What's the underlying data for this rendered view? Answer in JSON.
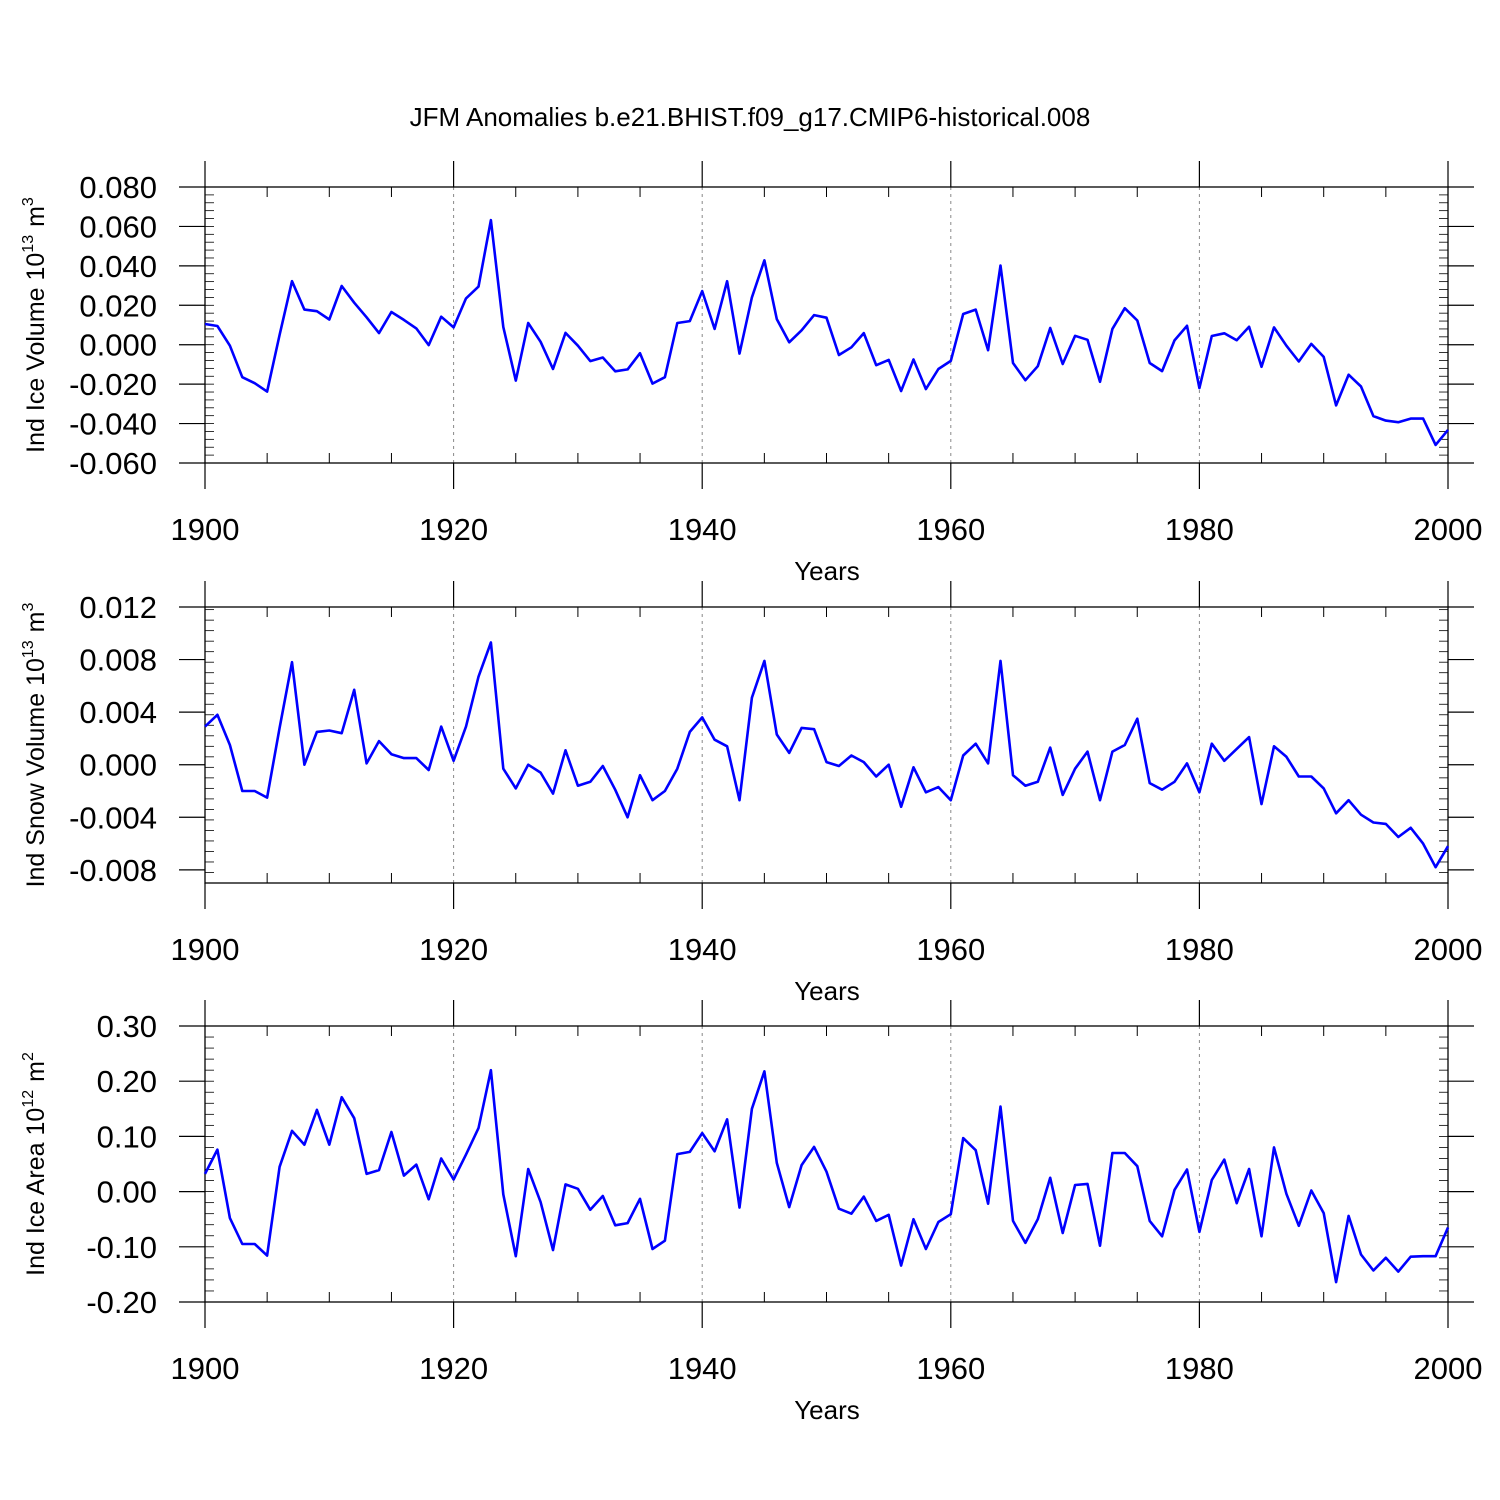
{
  "figure": {
    "title": "JFM Anomalies b.e21.BHIST.f09_g17.CMIP6-historical.008",
    "line_color": "#0000ff",
    "grid_color": "#888888",
    "axis_color": "#000000"
  },
  "chart_data": [
    {
      "type": "line",
      "name": "ice-volume",
      "ylabel": "Ind Ice Volume 10",
      "ylabel_exponent": "13",
      "ylabel_unit": "m",
      "ylabel_unit_exponent": "3",
      "xlabel": "Years",
      "xlim": [
        1900,
        2000
      ],
      "ylim": [
        -0.06,
        0.08
      ],
      "yticks": [
        -0.06,
        -0.04,
        -0.02,
        0.0,
        0.02,
        0.04,
        0.06,
        0.08
      ],
      "ytick_labels": [
        "-0.060",
        "-0.040",
        "-0.020",
        "0.000",
        "0.020",
        "0.040",
        "0.060",
        "0.080"
      ],
      "xticks": [
        1900,
        1920,
        1940,
        1960,
        1980,
        2000
      ],
      "xtick_labels": [
        "1900",
        "1920",
        "1940",
        "1960",
        "1980",
        "2000"
      ],
      "x_start": 1900,
      "values": [
        0.0105,
        0.0095,
        -0.0005,
        -0.0165,
        -0.0195,
        -0.0238,
        0.005,
        0.0322,
        0.0178,
        0.017,
        0.0128,
        0.0298,
        0.0213,
        0.0139,
        0.0059,
        0.0166,
        0.0126,
        0.0083,
        -0.0002,
        0.0142,
        0.0088,
        0.0235,
        0.0295,
        0.0632,
        0.009,
        -0.0182,
        0.011,
        0.0015,
        -0.0123,
        0.006,
        -0.0005,
        -0.0083,
        -0.0065,
        -0.0135,
        -0.0125,
        -0.0043,
        -0.0197,
        -0.0165,
        0.011,
        0.012,
        0.0272,
        0.008,
        0.0322,
        -0.0045,
        0.024,
        0.0428,
        0.013,
        0.0012,
        0.0073,
        0.015,
        0.0137,
        -0.0052,
        -0.0013,
        0.0059,
        -0.0104,
        -0.0077,
        -0.0235,
        -0.0075,
        -0.0225,
        -0.0123,
        -0.0082,
        0.0156,
        0.0178,
        -0.0028,
        0.0402,
        -0.0093,
        -0.018,
        -0.0109,
        0.0085,
        -0.0098,
        0.0045,
        0.0025,
        -0.0188,
        0.008,
        0.0185,
        0.0123,
        -0.0093,
        -0.0134,
        0.0022,
        0.0096,
        -0.022,
        0.0044,
        0.0058,
        0.0023,
        0.0091,
        -0.0112,
        0.0088,
        -0.0005,
        -0.0085,
        0.0004,
        -0.0062,
        -0.0308,
        -0.0152,
        -0.0212,
        -0.0362,
        -0.0385,
        -0.0393,
        -0.0375,
        -0.0375,
        -0.0508,
        -0.0432
      ]
    },
    {
      "type": "line",
      "name": "snow-volume",
      "ylabel": "Ind Snow Volume 10",
      "ylabel_exponent": "13",
      "ylabel_unit": "m",
      "ylabel_unit_exponent": "3",
      "xlabel": "Years",
      "xlim": [
        1900,
        2000
      ],
      "ylim": [
        -0.009,
        0.012
      ],
      "yticks": [
        -0.008,
        -0.004,
        0.0,
        0.004,
        0.008,
        0.012
      ],
      "ytick_labels": [
        "-0.008",
        "-0.004",
        "0.000",
        "0.004",
        "0.008",
        "0.012"
      ],
      "xticks": [
        1900,
        1920,
        1940,
        1960,
        1980,
        2000
      ],
      "xtick_labels": [
        "1900",
        "1920",
        "1940",
        "1960",
        "1980",
        "2000"
      ],
      "x_start": 1900,
      "values": [
        0.0029,
        0.0038,
        0.0015,
        -0.002,
        -0.002,
        -0.0025,
        0.0028,
        0.0078,
        0.0,
        0.0025,
        0.0026,
        0.0024,
        0.0057,
        0.0001,
        0.0018,
        0.0008,
        0.0005,
        0.0005,
        -0.0004,
        0.0029,
        0.0003,
        0.0029,
        0.0067,
        0.0093,
        -0.0003,
        -0.0018,
        0.0,
        -0.0006,
        -0.0022,
        0.0011,
        -0.0016,
        -0.0013,
        -0.0001,
        -0.0019,
        -0.004,
        -0.0008,
        -0.0027,
        -0.002,
        -0.0003,
        0.0025,
        0.0036,
        0.0019,
        0.0014,
        -0.0027,
        0.0051,
        0.0079,
        0.0023,
        0.0009,
        0.0028,
        0.0027,
        0.0002,
        -0.0001,
        0.0007,
        0.0002,
        -0.0009,
        0.0,
        -0.0032,
        -0.0002,
        -0.0021,
        -0.0017,
        -0.0027,
        0.0007,
        0.0016,
        0.0001,
        0.0079,
        -0.0008,
        -0.0016,
        -0.0013,
        0.0013,
        -0.0023,
        -0.0003,
        0.001,
        -0.0027,
        0.001,
        0.0015,
        0.0035,
        -0.0014,
        -0.0019,
        -0.0013,
        0.0001,
        -0.0021,
        0.0016,
        0.0003,
        0.0012,
        0.0021,
        -0.003,
        0.0014,
        0.0006,
        -0.0009,
        -0.0009,
        -0.0018,
        -0.0037,
        -0.0027,
        -0.0038,
        -0.0044,
        -0.0045,
        -0.0055,
        -0.0048,
        -0.006,
        -0.0078,
        -0.0062
      ]
    },
    {
      "type": "line",
      "name": "ice-area",
      "ylabel": "Ind Ice Area 10",
      "ylabel_exponent": "12",
      "ylabel_unit": "m",
      "ylabel_unit_exponent": "2",
      "xlabel": "Years",
      "xlim": [
        1900,
        2000
      ],
      "ylim": [
        -0.2,
        0.3
      ],
      "yticks": [
        -0.2,
        -0.1,
        0.0,
        0.1,
        0.2,
        0.3
      ],
      "ytick_labels": [
        "-0.20",
        "-0.10",
        "0.00",
        "0.10",
        "0.20",
        "0.30"
      ],
      "xticks": [
        1900,
        1920,
        1940,
        1960,
        1980,
        2000
      ],
      "xtick_labels": [
        "1900",
        "1920",
        "1940",
        "1960",
        "1980",
        "2000"
      ],
      "x_start": 1900,
      "values": [
        0.032,
        0.076,
        -0.048,
        -0.095,
        -0.095,
        -0.116,
        0.045,
        0.11,
        0.085,
        0.148,
        0.085,
        0.171,
        0.133,
        0.032,
        0.039,
        0.108,
        0.029,
        0.049,
        -0.014,
        0.06,
        0.022,
        0.067,
        0.115,
        0.22,
        -0.005,
        -0.117,
        0.041,
        -0.019,
        -0.106,
        0.013,
        0.005,
        -0.033,
        -0.008,
        -0.061,
        -0.057,
        -0.013,
        -0.104,
        -0.089,
        0.068,
        0.072,
        0.106,
        0.073,
        0.131,
        -0.029,
        0.15,
        0.218,
        0.052,
        -0.028,
        0.048,
        0.081,
        0.036,
        -0.031,
        -0.04,
        -0.009,
        -0.053,
        -0.042,
        -0.134,
        -0.05,
        -0.104,
        -0.055,
        -0.041,
        0.097,
        0.075,
        -0.022,
        0.154,
        -0.053,
        -0.093,
        -0.05,
        0.025,
        -0.075,
        0.012,
        0.014,
        -0.098,
        0.07,
        0.07,
        0.046,
        -0.053,
        -0.081,
        0.003,
        0.04,
        -0.073,
        0.021,
        0.058,
        -0.021,
        0.041,
        -0.081,
        0.08,
        -0.004,
        -0.062,
        0.002,
        -0.039,
        -0.164,
        -0.044,
        -0.114,
        -0.143,
        -0.12,
        -0.145,
        -0.118,
        -0.117,
        -0.117,
        -0.065
      ]
    }
  ]
}
